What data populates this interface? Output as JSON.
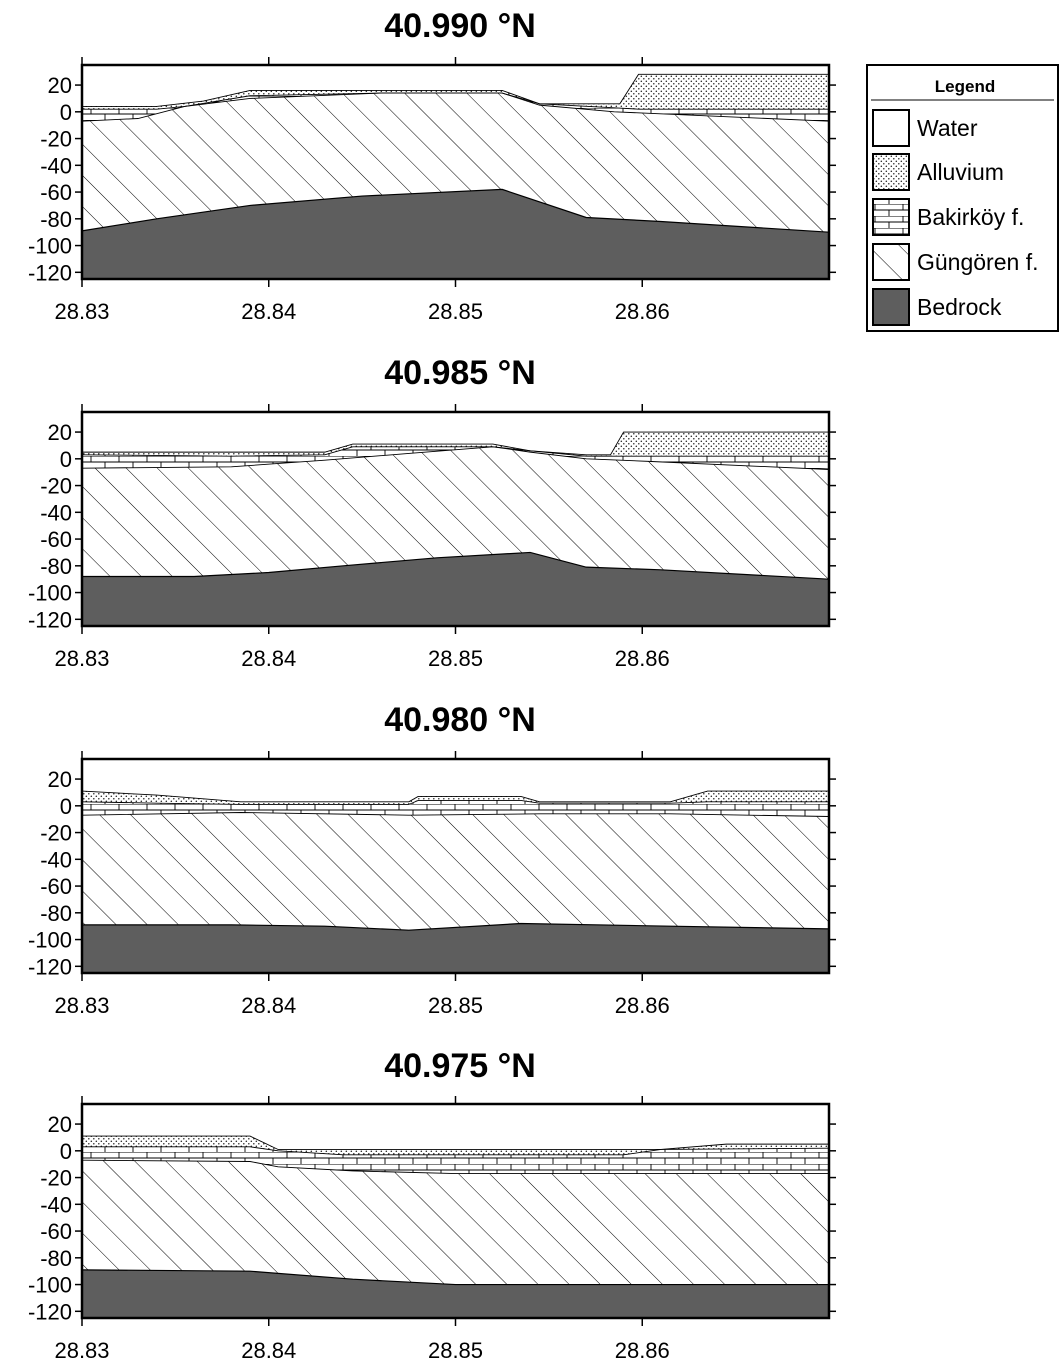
{
  "chart_data": [
    {
      "type": "area",
      "title": "40.990 °N",
      "xlim": [
        28.83,
        28.87
      ],
      "ylim": [
        -125,
        35
      ],
      "x_ticks": [
        "28.83",
        "28.84",
        "28.85",
        "28.86"
      ],
      "y_ticks": [
        "20",
        "0",
        "-20",
        "-40",
        "-60",
        "-80",
        "-100",
        "-120"
      ],
      "boundaries": {
        "surface": [
          [
            28.83,
            4
          ],
          [
            28.834,
            4
          ],
          [
            28.8365,
            8
          ],
          [
            28.839,
            16
          ],
          [
            28.846,
            16
          ],
          [
            28.8525,
            16
          ],
          [
            28.8545,
            6
          ],
          [
            28.8588,
            6
          ],
          [
            28.8598,
            28
          ],
          [
            28.87,
            28
          ]
        ],
        "alluvium_base": [
          [
            28.83,
            2
          ],
          [
            28.834,
            2
          ],
          [
            28.8355,
            4
          ],
          [
            28.839,
            12
          ],
          [
            28.846,
            14
          ],
          [
            28.8525,
            14
          ],
          [
            28.8545,
            6
          ],
          [
            28.8585,
            3
          ],
          [
            28.8598,
            2
          ],
          [
            28.87,
            2
          ]
        ],
        "bakirkoy_base": [
          [
            28.83,
            -7
          ],
          [
            28.833,
            -5
          ],
          [
            28.8355,
            4
          ],
          [
            28.839,
            10
          ],
          [
            28.846,
            14
          ],
          [
            28.8525,
            14
          ],
          [
            28.8545,
            5
          ],
          [
            28.8585,
            0
          ],
          [
            28.87,
            -7
          ]
        ],
        "bedrock_top": [
          [
            28.83,
            -89
          ],
          [
            28.834,
            -80
          ],
          [
            28.839,
            -70
          ],
          [
            28.845,
            -63
          ],
          [
            28.8525,
            -58
          ],
          [
            28.857,
            -79
          ],
          [
            28.861,
            -82
          ],
          [
            28.87,
            -90
          ]
        ]
      }
    },
    {
      "type": "area",
      "title": "40.985 °N",
      "xlim": [
        28.83,
        28.87
      ],
      "ylim": [
        -125,
        35
      ],
      "x_ticks": [
        "28.83",
        "28.84",
        "28.85",
        "28.86"
      ],
      "y_ticks": [
        "20",
        "0",
        "-20",
        "-40",
        "-60",
        "-80",
        "-100",
        "-120"
      ],
      "boundaries": {
        "surface": [
          [
            28.83,
            5
          ],
          [
            28.838,
            5
          ],
          [
            28.843,
            5
          ],
          [
            28.8445,
            11
          ],
          [
            28.852,
            11
          ],
          [
            28.854,
            6
          ],
          [
            28.857,
            3
          ],
          [
            28.8583,
            3
          ],
          [
            28.859,
            20
          ],
          [
            28.87,
            20
          ]
        ],
        "alluvium_base": [
          [
            28.83,
            3
          ],
          [
            28.838,
            2
          ],
          [
            28.843,
            3
          ],
          [
            28.8445,
            9
          ],
          [
            28.852,
            9
          ],
          [
            28.854,
            6
          ],
          [
            28.857,
            2
          ],
          [
            28.8583,
            2
          ],
          [
            28.87,
            2
          ]
        ],
        "bakirkoy_base": [
          [
            28.83,
            -7
          ],
          [
            28.838,
            -6
          ],
          [
            28.843,
            -1
          ],
          [
            28.8475,
            4
          ],
          [
            28.852,
            9
          ],
          [
            28.854,
            5
          ],
          [
            28.857,
            0
          ],
          [
            28.8605,
            -2
          ],
          [
            28.87,
            -8
          ]
        ],
        "bedrock_top": [
          [
            28.83,
            -88
          ],
          [
            28.836,
            -88
          ],
          [
            28.84,
            -85
          ],
          [
            28.844,
            -80
          ],
          [
            28.849,
            -74
          ],
          [
            28.854,
            -70
          ],
          [
            28.857,
            -81
          ],
          [
            28.861,
            -83
          ],
          [
            28.87,
            -90
          ]
        ]
      }
    },
    {
      "type": "area",
      "title": "40.980 °N",
      "xlim": [
        28.83,
        28.87
      ],
      "ylim": [
        -125,
        35
      ],
      "x_ticks": [
        "28.83",
        "28.84",
        "28.85",
        "28.86"
      ],
      "y_ticks": [
        "20",
        "0",
        "-20",
        "-40",
        "-60",
        "-80",
        "-100",
        "-120"
      ],
      "boundaries": {
        "surface": [
          [
            28.83,
            11
          ],
          [
            28.834,
            8
          ],
          [
            28.8385,
            3
          ],
          [
            28.8475,
            3
          ],
          [
            28.848,
            7
          ],
          [
            28.8535,
            7
          ],
          [
            28.8545,
            3
          ],
          [
            28.8615,
            3
          ],
          [
            28.8635,
            11
          ],
          [
            28.87,
            11
          ]
        ],
        "alluvium_base": [
          [
            28.83,
            3
          ],
          [
            28.834,
            2
          ],
          [
            28.8385,
            1
          ],
          [
            28.8475,
            1
          ],
          [
            28.848,
            4
          ],
          [
            28.8535,
            4
          ],
          [
            28.8545,
            2
          ],
          [
            28.8615,
            2
          ],
          [
            28.8635,
            3
          ],
          [
            28.87,
            3
          ]
        ],
        "bakirkoy_base": [
          [
            28.83,
            -7
          ],
          [
            28.8385,
            -5
          ],
          [
            28.8475,
            -7
          ],
          [
            28.8545,
            -6
          ],
          [
            28.8615,
            -6
          ],
          [
            28.87,
            -8
          ]
        ],
        "bedrock_top": [
          [
            28.83,
            -89
          ],
          [
            28.838,
            -89
          ],
          [
            28.843,
            -90
          ],
          [
            28.8475,
            -93
          ],
          [
            28.8535,
            -88
          ],
          [
            28.8615,
            -90
          ],
          [
            28.87,
            -92
          ]
        ]
      }
    },
    {
      "type": "area",
      "title": "40.975 °N",
      "xlim": [
        28.83,
        28.87
      ],
      "ylim": [
        -125,
        35
      ],
      "x_ticks": [
        "28.83",
        "28.84",
        "28.85",
        "28.86"
      ],
      "y_ticks": [
        "20",
        "0",
        "-20",
        "-40",
        "-60",
        "-80",
        "-100",
        "-120"
      ],
      "boundaries": {
        "surface": [
          [
            28.83,
            11
          ],
          [
            28.839,
            11
          ],
          [
            28.8405,
            1
          ],
          [
            28.85,
            1
          ],
          [
            28.859,
            1
          ],
          [
            28.861,
            1
          ],
          [
            28.8645,
            5
          ],
          [
            28.87,
            5
          ]
        ],
        "alluvium_base": [
          [
            28.83,
            3
          ],
          [
            28.839,
            3
          ],
          [
            28.8405,
            0
          ],
          [
            28.844,
            -3
          ],
          [
            28.85,
            -3
          ],
          [
            28.859,
            -3
          ],
          [
            28.861,
            1
          ],
          [
            28.87,
            2
          ]
        ],
        "bakirkoy_base": [
          [
            28.83,
            -7
          ],
          [
            28.839,
            -8
          ],
          [
            28.8405,
            -12
          ],
          [
            28.8445,
            -15
          ],
          [
            28.85,
            -17
          ],
          [
            28.87,
            -17
          ]
        ],
        "bedrock_top": [
          [
            28.83,
            -89
          ],
          [
            28.839,
            -90
          ],
          [
            28.8445,
            -96
          ],
          [
            28.85,
            -100
          ],
          [
            28.87,
            -100
          ]
        ]
      }
    }
  ],
  "legend": {
    "title": "Legend",
    "items": [
      {
        "key": "water",
        "label": "Water"
      },
      {
        "key": "alluvium",
        "label": "Alluvium"
      },
      {
        "key": "bakirkoy",
        "label": "Bakirköy f."
      },
      {
        "key": "gungoren",
        "label": "Güngören f."
      },
      {
        "key": "bedrock",
        "label": "Bedrock"
      }
    ]
  },
  "colors": {
    "bedrock": "#5e5e5e",
    "line": "#000000",
    "water": "#ffffff"
  }
}
